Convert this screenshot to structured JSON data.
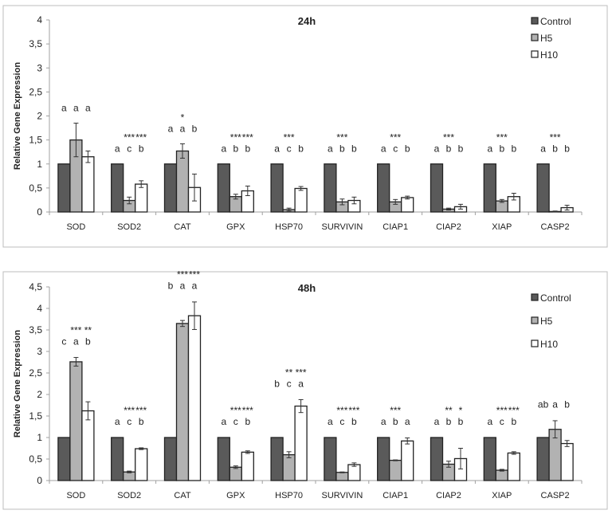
{
  "colors": {
    "Control": "#5a5a5a",
    "H5": "#b2b2b2",
    "H10": "#ffffff",
    "frame": "#bdbdbd",
    "axis": "#a0a0a0"
  },
  "chart_data": [
    {
      "type": "bar",
      "title": "24h",
      "ylabel": "Relative Gene Expression",
      "xlabel": "",
      "ylim": [
        0,
        4
      ],
      "yticks": [
        0,
        0.5,
        1,
        1.5,
        2,
        2.5,
        3,
        3.5,
        4
      ],
      "ytick_labels": [
        "0",
        "0,5",
        "1",
        "1,5",
        "2",
        "2,5",
        "3",
        "3,5",
        "4"
      ],
      "legend_position": "top-right",
      "categories": [
        "SOD",
        "SOD2",
        "CAT",
        "GPX",
        "HSP70",
        "SURVIVIN",
        "CIAP1",
        "CIAP2",
        "XIAP",
        "CASP2"
      ],
      "series": [
        {
          "name": "Control",
          "values": [
            1,
            1,
            1,
            1,
            1,
            1,
            1,
            1,
            1,
            1
          ],
          "errors": [
            0,
            0,
            0,
            0,
            0,
            0,
            0,
            0,
            0,
            0
          ],
          "letters": [
            "a",
            "a",
            "a",
            "a",
            "a",
            "a",
            "a",
            "a",
            "a",
            "a"
          ],
          "stars": [
            "",
            "",
            "",
            "",
            "",
            "",
            "",
            "",
            "",
            ""
          ]
        },
        {
          "name": "H5",
          "values": [
            1.5,
            0.24,
            1.27,
            0.32,
            0.05,
            0.21,
            0.21,
            0.06,
            0.23,
            0.01
          ],
          "errors": [
            0.35,
            0.07,
            0.15,
            0.05,
            0.03,
            0.06,
            0.05,
            0.02,
            0.03,
            0.01
          ],
          "letters": [
            "a",
            "c",
            "a",
            "b",
            "c",
            "b",
            "c",
            "b",
            "b",
            "b"
          ],
          "stars": [
            "",
            "***",
            "*",
            "***",
            "***",
            "***",
            "***",
            "***",
            "***",
            "***"
          ]
        },
        {
          "name": "H10",
          "values": [
            1.15,
            0.58,
            0.51,
            0.44,
            0.49,
            0.24,
            0.3,
            0.11,
            0.32,
            0.09
          ],
          "errors": [
            0.12,
            0.07,
            0.28,
            0.1,
            0.04,
            0.07,
            0.03,
            0.05,
            0.07,
            0.05
          ],
          "letters": [
            "a",
            "b",
            "b",
            "b",
            "b",
            "b",
            "b",
            "b",
            "b",
            "b"
          ],
          "stars": [
            "",
            "***",
            "",
            "***",
            "",
            "",
            "",
            "",
            "",
            ""
          ]
        }
      ]
    },
    {
      "type": "bar",
      "title": "48h",
      "ylabel": "Relative Gene Expression",
      "xlabel": "",
      "ylim": [
        0,
        4.5
      ],
      "yticks": [
        0,
        0.5,
        1,
        1.5,
        2,
        2.5,
        3,
        3.5,
        4,
        4.5
      ],
      "ytick_labels": [
        "0",
        "0,5",
        "1",
        "1,5",
        "2",
        "2,5",
        "3",
        "3,5",
        "4",
        "4,5"
      ],
      "legend_position": "top-right",
      "categories": [
        "SOD",
        "SOD2",
        "CAT",
        "GPX",
        "HSP70",
        "SURVIVIN",
        "CIAP1",
        "CIAP2",
        "XIAP",
        "CASP2"
      ],
      "series": [
        {
          "name": "Control",
          "values": [
            1,
            1,
            1,
            1,
            1,
            1,
            1,
            1,
            1,
            1
          ],
          "errors": [
            0,
            0,
            0,
            0,
            0,
            0,
            0,
            0,
            0,
            0
          ],
          "letters": [
            "c",
            "a",
            "b",
            "a",
            "b",
            "a",
            "a",
            "a",
            "a",
            "ab"
          ],
          "stars": [
            "",
            "",
            "",
            "",
            "",
            "",
            "",
            "",
            "",
            ""
          ]
        },
        {
          "name": "H5",
          "values": [
            2.76,
            0.2,
            3.65,
            0.31,
            0.6,
            0.19,
            0.47,
            0.38,
            0.24,
            1.19
          ],
          "errors": [
            0.1,
            0.02,
            0.07,
            0.03,
            0.07,
            0.01,
            0.01,
            0.07,
            0.02,
            0.2
          ],
          "letters": [
            "a",
            "c",
            "a",
            "c",
            "c",
            "c",
            "b",
            "b",
            "c",
            "a"
          ],
          "stars": [
            "***",
            "***",
            "***",
            "***",
            "**",
            "***",
            "***",
            "**",
            "***",
            ""
          ]
        },
        {
          "name": "H10",
          "values": [
            1.62,
            0.74,
            3.83,
            0.66,
            1.73,
            0.37,
            0.92,
            0.51,
            0.64,
            0.86
          ],
          "errors": [
            0.21,
            0.02,
            0.32,
            0.03,
            0.15,
            0.04,
            0.07,
            0.24,
            0.03,
            0.07
          ],
          "letters": [
            "b",
            "b",
            "a",
            "b",
            "a",
            "b",
            "a",
            "b",
            "b",
            "b"
          ],
          "stars": [
            "**",
            "***",
            "***",
            "***",
            "***",
            "***",
            "",
            "*",
            "***",
            ""
          ]
        }
      ]
    }
  ]
}
